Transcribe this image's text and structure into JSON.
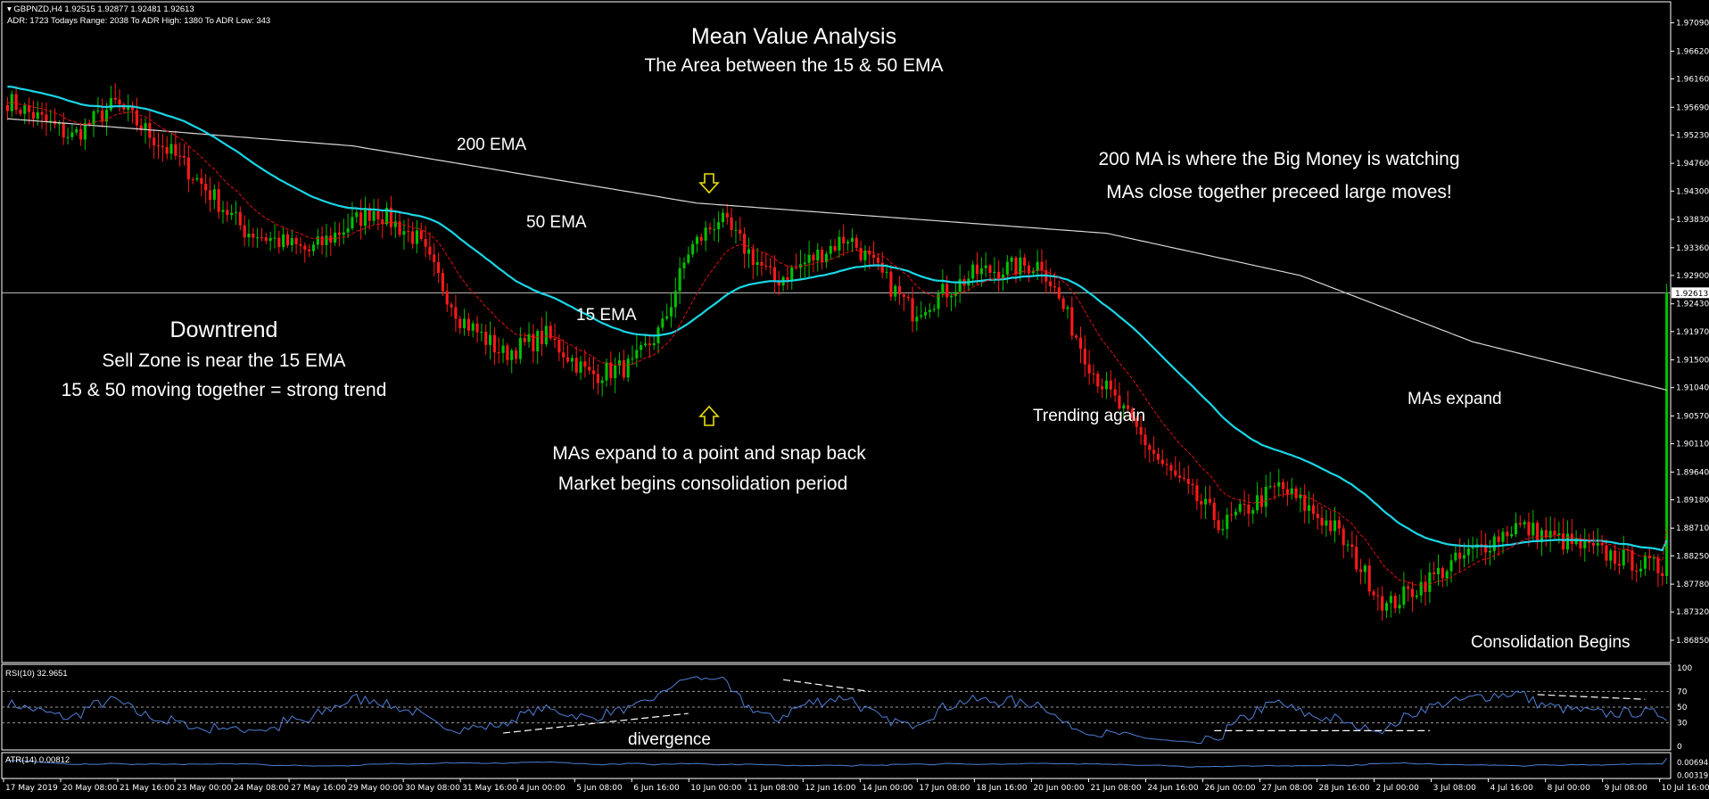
{
  "header": {
    "symbol_line": "GBPNZD,H4  1.92515 1.92877 1.92481 1.92613",
    "adr_line": "ADR: 1723  Todays Range: 2038  To ADR High: 1380  To ADR Low: 343"
  },
  "annotations": {
    "title": "Mean Value Analysis",
    "subtitle": "The Area between the 15 & 50 EMA",
    "ema200": "200 EMA",
    "ema50": "50 EMA",
    "ema15": "15 EMA",
    "downtrend": "Downtrend",
    "sell_zone": "Sell Zone is near the 15 EMA",
    "together": "15 & 50 moving together = strong trend",
    "big_money": "200 MA is where the Big Money is watching",
    "close_together": "MAs close together preceed large moves!",
    "snap_back": "MAs expand to a point and snap back",
    "consolidation_period": "Market begins consolidation period",
    "trending_again": "Trending again",
    "mas_expand": "MAs expand",
    "consolidation_begins": "Consolidation Begins",
    "divergence": "divergence"
  },
  "colors": {
    "background": "#000000",
    "bull": "#00c000",
    "bear": "#ff1a1a",
    "ema15": "#e01010",
    "ema50": "#1ad6e6",
    "ema200": "#d8d8d8",
    "rsi": "#4f7fd6",
    "atr": "#4f7fd6",
    "arrow": "#e8e000",
    "axis_text": "#ffffff",
    "current_price_line": "#c0c0c0"
  },
  "chart_data": {
    "type": "candlestick",
    "symbol": "GBPNZD",
    "timeframe": "H4",
    "current_price": "1.92613",
    "price_range": [
      1.8648,
      1.9738
    ],
    "price_ticks": [
      "1.97090",
      "1.96620",
      "1.96160",
      "1.95690",
      "1.95230",
      "1.94760",
      "1.94300",
      "1.93830",
      "1.93360",
      "1.92900",
      "1.92430",
      "1.91970",
      "1.91500",
      "1.91040",
      "1.90570",
      "1.90110",
      "1.89640",
      "1.89180",
      "1.88710",
      "1.88250",
      "1.87780",
      "1.87320",
      "1.86850"
    ],
    "x_labels": [
      "17 May 2019",
      "20 May 08:00",
      "21 May 16:00",
      "23 May 00:00",
      "24 May 08:00",
      "27 May 16:00",
      "29 May 00:00",
      "30 May 08:00",
      "31 May 16:00",
      "4 Jun 00:00",
      "5 Jun 08:00",
      "6 Jun 16:00",
      "10 Jun 00:00",
      "11 Jun 08:00",
      "12 Jun 16:00",
      "14 Jun 00:00",
      "17 Jun 08:00",
      "18 Jun 16:00",
      "20 Jun 00:00",
      "21 Jun 08:00",
      "24 Jun 16:00",
      "26 Jun 00:00",
      "27 Jun 08:00",
      "28 Jun 16:00",
      "2 Jul 00:00",
      "3 Jul 08:00",
      "4 Jul 16:00",
      "8 Jul 00:00",
      "9 Jul 08:00",
      "10 Jul 16:00"
    ],
    "close_path": {
      "index": [
        0,
        15,
        25,
        40,
        55,
        70,
        85,
        95,
        105,
        115,
        125,
        135,
        145,
        152,
        158,
        165,
        178,
        195,
        210,
        225,
        240,
        252,
        268,
        282,
        295,
        308,
        320,
        335,
        350,
        365,
        385
      ],
      "price": [
        1.958,
        1.952,
        1.9575,
        1.948,
        1.9365,
        1.933,
        1.94,
        1.935,
        1.922,
        1.916,
        1.919,
        1.9125,
        1.914,
        1.9205,
        1.933,
        1.9385,
        1.928,
        1.9355,
        1.923,
        1.9295,
        1.931,
        1.913,
        1.8975,
        1.8875,
        1.894,
        1.887,
        1.874,
        1.881,
        1.8875,
        1.884,
        1.88
      ]
    },
    "ema_periods": [
      15,
      50,
      200
    ],
    "ema200_path": {
      "index": [
        0,
        80,
        160,
        255,
        300,
        340,
        385
      ],
      "price": [
        1.955,
        1.9505,
        1.941,
        1.936,
        1.929,
        1.918,
        1.91
      ]
    },
    "indicators": {
      "rsi": {
        "label": "RSI(10) 32.9651",
        "period": 10,
        "last": 32.9651,
        "levels": [
          30,
          50,
          70
        ],
        "ticks": [
          "100",
          "70",
          "50",
          "30",
          "0"
        ]
      },
      "atr": {
        "label": "ATR(14) 0.00812",
        "period": 14,
        "last": 0.00812,
        "ticks": [
          "0.00694",
          "0.00319"
        ]
      }
    }
  }
}
